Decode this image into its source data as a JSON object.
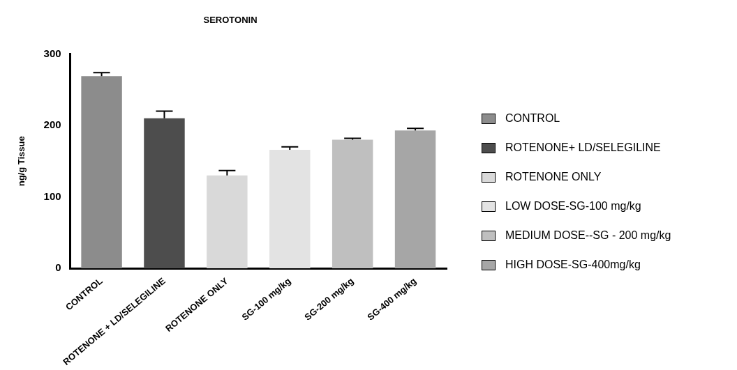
{
  "chart_data": {
    "type": "bar",
    "title": "SEROTONIN",
    "ylabel": "ng/g Tissue",
    "categories": [
      "CONTROL",
      "ROTENONE + LD/SELEGILINE",
      "ROTENONE ONLY",
      "SG-100 mg/kg",
      "SG-200 mg/kg",
      "SG-400 mg/kg"
    ],
    "series": [
      {
        "name": "CONTROL",
        "color": "#8c8c8c",
        "values": [
          269,
          null,
          null,
          null,
          null,
          null
        ],
        "errors": [
          5,
          null,
          null,
          null,
          null,
          null
        ]
      },
      {
        "name": "ROTENONE+ LD/SELEGILINE",
        "color": "#4d4d4d",
        "values": [
          null,
          210,
          null,
          null,
          null,
          null
        ],
        "errors": [
          null,
          10,
          null,
          null,
          null,
          null
        ]
      },
      {
        "name": "ROTENONE ONLY",
        "color": "#d9d9d9",
        "values": [
          null,
          null,
          130,
          null,
          null,
          null
        ],
        "errors": [
          null,
          null,
          7,
          null,
          null,
          null
        ]
      },
      {
        "name": "LOW DOSE-SG-100 mg/kg",
        "color": "#e3e3e3",
        "values": [
          null,
          null,
          null,
          166,
          null,
          null
        ],
        "errors": [
          null,
          null,
          null,
          4,
          null,
          null
        ]
      },
      {
        "name": "MEDIUM DOSE--SG - 200 mg/kg",
        "color": "#bfbfbf",
        "values": [
          null,
          null,
          null,
          null,
          180,
          null
        ],
        "errors": [
          null,
          null,
          null,
          null,
          2,
          null
        ]
      },
      {
        "name": "HIGH DOSE-SG-400mg/kg",
        "color": "#a6a6a6",
        "values": [
          null,
          null,
          null,
          null,
          null,
          193
        ],
        "errors": [
          null,
          null,
          null,
          null,
          null,
          3
        ]
      }
    ],
    "ylim": [
      0,
      300
    ],
    "yticks": [
      0,
      100,
      200,
      300
    ],
    "grid": false,
    "legend": "right"
  }
}
